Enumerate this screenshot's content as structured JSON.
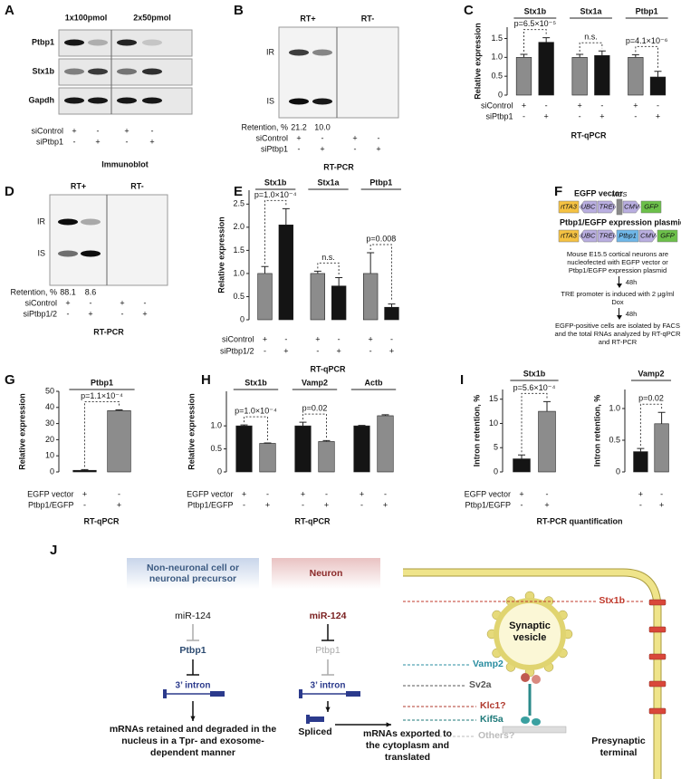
{
  "panel_a": {
    "label": "A",
    "columns": [
      "1x100pmol",
      "2x50pmol"
    ],
    "rows": [
      "Ptbp1",
      "Stx1b",
      "Gapdh"
    ],
    "conditions": [
      {
        "name": "siControl",
        "signs": [
          "+",
          "-",
          "+",
          "-"
        ]
      },
      {
        "name": "siPtbp1",
        "signs": [
          "-",
          "+",
          "-",
          "+"
        ]
      }
    ],
    "caption": "Immunoblot"
  },
  "panel_b": {
    "label": "B",
    "lanes": [
      "RT+",
      "RT-"
    ],
    "bands": [
      "IR",
      "IS"
    ],
    "retention_label": "Retention, %",
    "retention": [
      "21.2",
      "10.0"
    ],
    "conditions": [
      {
        "name": "siControl",
        "signs": [
          "+",
          "-",
          "+",
          "-"
        ]
      },
      {
        "name": "siPtbp1",
        "signs": [
          "-",
          "+",
          "-",
          "+"
        ]
      }
    ],
    "caption": "RT-PCR"
  },
  "panel_c": {
    "label": "C",
    "type": "bar",
    "ylabel": "Relative expression",
    "ylim": [
      0,
      1.8
    ],
    "yticks": [
      0,
      0.5,
      {
        "value": 1,
        "label": "1.0"
      },
      1.5
    ],
    "groups": [
      "Stx1b",
      "Stx1a",
      "Ptbp1"
    ],
    "colors": [
      "#8c8c8c",
      "#141414"
    ],
    "values": [
      1.0,
      1.4,
      1.0,
      1.05,
      1.0,
      0.48
    ],
    "errors": [
      0.08,
      0.12,
      0.08,
      0.12,
      0.07,
      0.15
    ],
    "annotations": [
      "p=6.5×10⁻⁵",
      "n.s.",
      "p=4.1×10⁻⁶"
    ],
    "conditions": [
      {
        "name": "siControl",
        "signs": [
          "+",
          "-",
          "+",
          "-",
          "+",
          "-"
        ]
      },
      {
        "name": "siPtbp1",
        "signs": [
          "-",
          "+",
          "-",
          "+",
          "-",
          "+"
        ]
      }
    ],
    "caption": "RT-qPCR"
  },
  "panel_d": {
    "label": "D",
    "lanes": [
      "RT+",
      "RT-"
    ],
    "bands": [
      "IR",
      "IS"
    ],
    "retention_label": "Retention, %",
    "retention": [
      "88.1",
      "8.6"
    ],
    "conditions": [
      {
        "name": "siControl",
        "signs": [
          "+",
          "-",
          "+",
          "-"
        ]
      },
      {
        "name": "siPtbp1/2",
        "signs": [
          "-",
          "+",
          "-",
          "+"
        ]
      }
    ],
    "caption": "RT-PCR"
  },
  "panel_e": {
    "label": "E",
    "type": "bar",
    "ylabel": "Relative expression",
    "ylim": [
      0,
      2.8
    ],
    "yticks": [
      0,
      0.5,
      {
        "value": 1,
        "label": "1.0"
      },
      1.5,
      {
        "value": 2,
        "label": "2.0"
      },
      2.5
    ],
    "groups": [
      "Stx1b",
      "Stx1a",
      "Ptbp1"
    ],
    "colors": [
      "#8c8c8c",
      "#141414"
    ],
    "values": [
      1.0,
      2.05,
      1.0,
      0.73,
      1.0,
      0.27
    ],
    "errors": [
      0.15,
      0.35,
      0.05,
      0.18,
      0.45,
      0.07
    ],
    "annotations": [
      "p=1.0×10⁻⁴",
      "n.s.",
      "p=0.008"
    ],
    "conditions": [
      {
        "name": "siControl",
        "signs": [
          "+",
          "-",
          "+",
          "-",
          "+",
          "-"
        ]
      },
      {
        "name": "siPtbp1/2",
        "signs": [
          "-",
          "+",
          "-",
          "+",
          "-",
          "+"
        ]
      }
    ],
    "caption": "RT-qPCR"
  },
  "panel_f": {
    "label": "F",
    "constructs": [
      {
        "name": "EGFP vector",
        "parts": [
          "rtTA3",
          "UBC",
          "TREi",
          "MCS",
          "CMV",
          "GFP"
        ],
        "colors": [
          "#f5c242",
          "#b9aee0",
          "#b9aee0",
          "#8a8a8a",
          "#b9aee0",
          "#6cc04a"
        ]
      },
      {
        "name": "Ptbp1/EGFP expression plasmid",
        "parts": [
          "rtTA3",
          "UBC",
          "TREi",
          "Ptbp1",
          "CMV",
          "GFP"
        ],
        "colors": [
          "#f5c242",
          "#b9aee0",
          "#b9aee0",
          "#6fb7e8",
          "#b9aee0",
          "#6cc04a"
        ]
      }
    ],
    "steps": [
      "Mouse E15.5 cortical neurons are nucleofected with EGFP vector or Ptbp1/EGFP expression plasmid",
      "TRE promoter is induced with 2 μg/ml Dox",
      "EGFP-positive cells are isolated by FACS and the total RNAs analyzed by RT-qPCR and RT-PCR"
    ],
    "intervals": [
      "48h",
      "48h"
    ]
  },
  "panel_g": {
    "label": "G",
    "type": "bar",
    "ylabel": "Relative expression",
    "ylim": [
      0,
      50
    ],
    "yticks": [
      0,
      10,
      20,
      30,
      40,
      50
    ],
    "groups": [
      "Ptbp1"
    ],
    "colors": [
      "#141414",
      "#8c8c8c"
    ],
    "values": [
      1,
      38
    ],
    "errors": [
      0.5,
      0.5
    ],
    "annotations": [
      "p=1.1×10⁻⁴"
    ],
    "conditions": [
      {
        "name": "EGFP vector",
        "signs": [
          "+",
          "-"
        ]
      },
      {
        "name": "Ptbp1/EGFP",
        "signs": [
          "-",
          "+"
        ]
      }
    ],
    "caption": "RT-qPCR"
  },
  "panel_h": {
    "label": "H",
    "type": "bar",
    "ylabel": "Relative expression",
    "ylim": [
      0,
      1.75
    ],
    "yticks": [
      0,
      0.5,
      {
        "value": 1,
        "label": "1.0"
      }
    ],
    "groups": [
      "Stx1b",
      "Vamp2",
      "Actb"
    ],
    "colors": [
      "#141414",
      "#8c8c8c"
    ],
    "values": [
      1.0,
      0.62,
      1.0,
      0.66,
      1.0,
      1.22
    ],
    "errors": [
      0.02,
      0.01,
      0.08,
      0.02,
      0.01,
      0.02
    ],
    "annotations": [
      "p=1.0×10⁻⁴",
      "p=0.02",
      null
    ],
    "conditions": [
      {
        "name": "EGFP vector",
        "signs": [
          "+",
          "-",
          "+",
          "-",
          "+",
          "-"
        ]
      },
      {
        "name": "Ptbp1/EGFP",
        "signs": [
          "-",
          "+",
          "-",
          "+",
          "-",
          "+"
        ]
      }
    ],
    "caption": "RT-qPCR"
  },
  "panel_i": {
    "label": "I",
    "charts": [
      {
        "type": "bar",
        "ylabel": "Intron retention, %",
        "ylim": [
          0,
          17
        ],
        "yticks": [
          0,
          5,
          10,
          15
        ],
        "groups": [
          "Stx1b"
        ],
        "colors": [
          "#141414",
          "#8c8c8c"
        ],
        "values": [
          2.7,
          12.5
        ],
        "errors": [
          0.8,
          2.0
        ],
        "annotations": [
          "p=5.6×10⁻⁴"
        ]
      },
      {
        "type": "bar",
        "ylabel": "Intron retention, %",
        "ylim": [
          0,
          1.3
        ],
        "yticks": [
          0,
          0.5,
          {
            "value": 1,
            "label": "1.0"
          }
        ],
        "groups": [
          "Vamp2"
        ],
        "colors": [
          "#141414",
          "#8c8c8c"
        ],
        "values": [
          0.32,
          0.76
        ],
        "errors": [
          0.05,
          0.18
        ],
        "annotations": [
          "p=0.02"
        ]
      }
    ],
    "conditions": [
      {
        "name": "EGFP vector",
        "signs": [
          "+",
          "-",
          "+",
          "-"
        ]
      },
      {
        "name": "Ptbp1/EGFP",
        "signs": [
          "-",
          "+",
          "-",
          "+"
        ]
      }
    ],
    "caption": "RT-PCR quantification"
  },
  "panel_j": {
    "label": "J",
    "left": {
      "header": "Non-neuronal cell or neuronal precursor",
      "mir": "miR-124",
      "ptbp1": "Ptbp1",
      "intron": "3’ intron",
      "outcome": "mRNAs retained and degraded in the nucleus in a Tpr- and exosome-dependent manner"
    },
    "right": {
      "header": "Neuron",
      "mir": "miR-124",
      "ptbp1": "Ptbp1",
      "intron": "3’ intron",
      "spliced": "Spliced",
      "outcome": "mRNAs exported to the cytoplasm and translated"
    },
    "terminal": {
      "targets": [
        "Stx1b",
        "Vamp2",
        "Sv2a",
        "Klc1?",
        "Kif5a",
        "Others?"
      ],
      "vesicle": "Synaptic vesicle",
      "label": "Presynaptic terminal"
    }
  }
}
